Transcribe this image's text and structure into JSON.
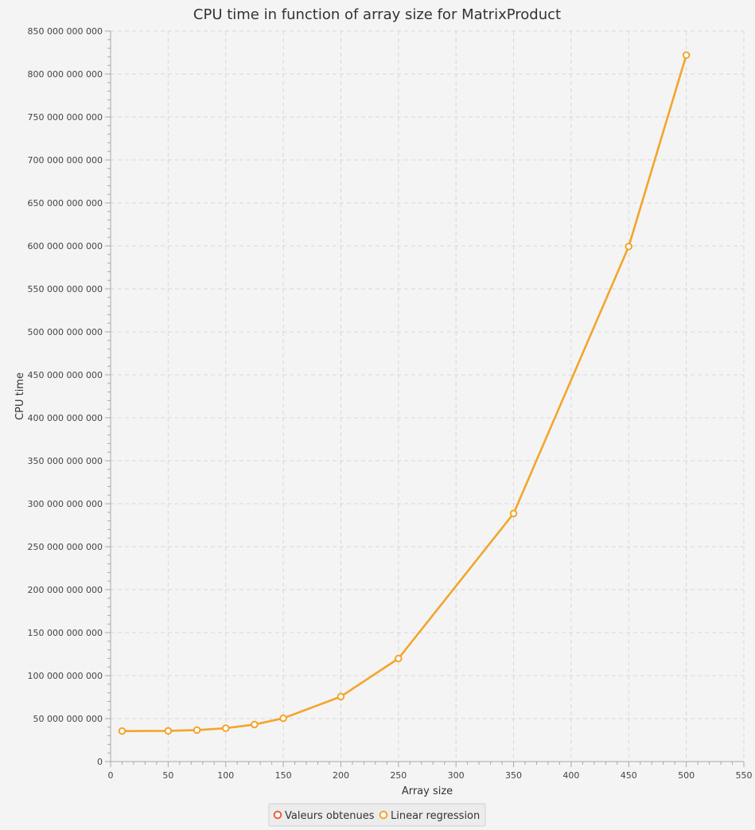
{
  "chart_data": {
    "type": "line",
    "title": "CPU time in function of array size for MatrixProduct",
    "xlabel": "Array size",
    "ylabel": "CPU time",
    "xlim": [
      0,
      550
    ],
    "ylim": [
      0,
      850000000000
    ],
    "x_ticks": [
      0,
      50,
      100,
      150,
      200,
      250,
      300,
      350,
      400,
      450,
      500,
      550
    ],
    "x_tick_labels": [
      "0",
      "50",
      "100",
      "150",
      "200",
      "250",
      "300",
      "350",
      "400",
      "450",
      "500",
      "550"
    ],
    "y_ticks": [
      0,
      50000000000,
      100000000000,
      150000000000,
      200000000000,
      250000000000,
      300000000000,
      350000000000,
      400000000000,
      450000000000,
      500000000000,
      550000000000,
      600000000000,
      650000000000,
      700000000000,
      750000000000,
      800000000000,
      850000000000
    ],
    "y_tick_labels": [
      "0",
      "50 000 000 000",
      "100 000 000 000",
      "150 000 000 000",
      "200 000 000 000",
      "250 000 000 000",
      "300 000 000 000",
      "350 000 000 000",
      "400 000 000 000",
      "450 000 000 000",
      "500 000 000 000",
      "550 000 000 000",
      "600 000 000 000",
      "650 000 000 000",
      "700 000 000 000",
      "750 000 000 000",
      "800 000 000 000",
      "850 000 000 000"
    ],
    "grid": true,
    "legend_position": "bottom-center",
    "series": [
      {
        "name": "Valeurs obtenues",
        "color": "#e8603c",
        "x": [],
        "y": []
      },
      {
        "name": "Linear regression",
        "color": "#f3a52a",
        "x": [
          10,
          50,
          75,
          100,
          125,
          150,
          200,
          250,
          350,
          450,
          500
        ],
        "y": [
          35500000000,
          35700000000,
          36600000000,
          38800000000,
          43100000000,
          50400000000,
          75600000000,
          119900000000,
          288600000000,
          599300000000,
          822000000000
        ]
      }
    ]
  }
}
